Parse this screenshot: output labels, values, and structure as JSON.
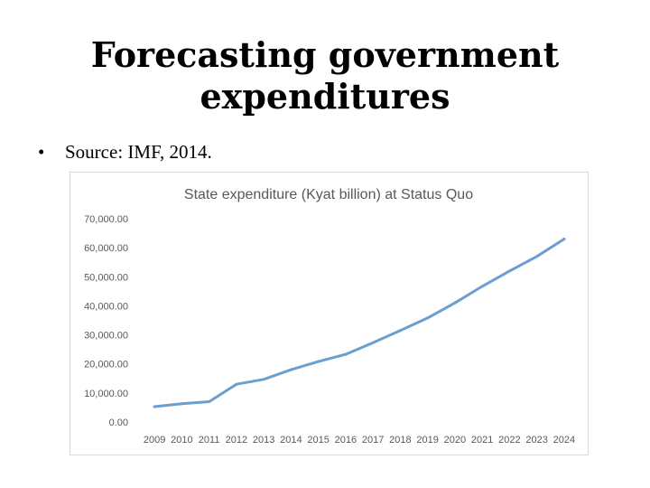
{
  "slide": {
    "title_line1": "Forecasting government",
    "title_line2": "expenditures",
    "bullet_symbol": "•",
    "bullet_text": "Source: IMF, 2014."
  },
  "colors": {
    "series_line": "#6a9fd0",
    "chart_title": "#595959",
    "tick_label": "#595959",
    "frame": "#d9d9d9"
  },
  "chart_data": {
    "type": "line",
    "title": "State expenditure (Kyat billion) at Status Quo",
    "xlabel": "",
    "ylabel": "",
    "categories": [
      "2009",
      "2010",
      "2011",
      "2012",
      "2013",
      "2014",
      "2015",
      "2016",
      "2017",
      "2018",
      "2019",
      "2020",
      "2021",
      "2022",
      "2023",
      "2024"
    ],
    "series": [
      {
        "name": "State expenditure",
        "values": [
          5300,
          6300,
          7000,
          13000,
          14700,
          18000,
          20800,
          23300,
          27300,
          31500,
          35800,
          41000,
          46700,
          52000,
          57000,
          63000
        ]
      }
    ],
    "ylim": [
      0,
      70000
    ],
    "yticks": [
      "0.00",
      "10,000.00",
      "20,000.00",
      "30,000.00",
      "40,000.00",
      "50,000.00",
      "60,000.00",
      "70,000.00"
    ],
    "ytick_values": [
      0,
      10000,
      20000,
      30000,
      40000,
      50000,
      60000,
      70000
    ],
    "grid": false,
    "legend": "none"
  }
}
